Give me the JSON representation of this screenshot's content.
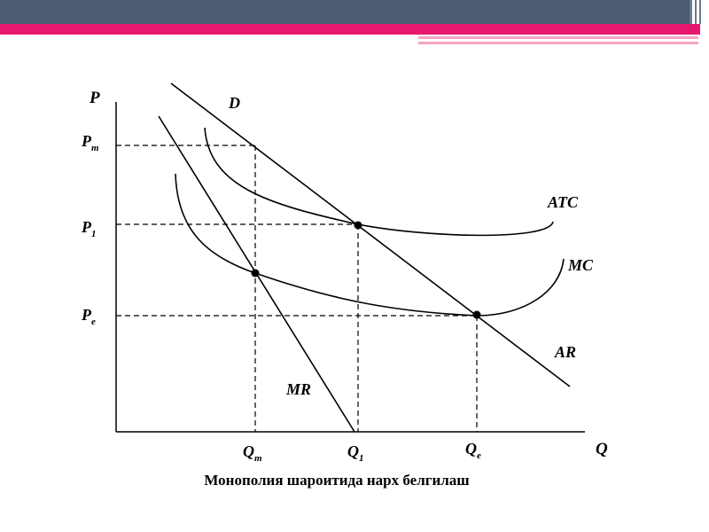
{
  "header": {
    "bar_color": "#4c5a72",
    "accent_color": "#e8176e",
    "light_accent_color": "#f6a3c4"
  },
  "diagram": {
    "axis_y_label": "P",
    "axis_x_label": "Q",
    "price_ticks": [
      {
        "main": "P",
        "sub": "m"
      },
      {
        "main": "P",
        "sub": "1"
      },
      {
        "main": "P",
        "sub": "e"
      }
    ],
    "quantity_ticks": [
      {
        "main": "Q",
        "sub": "m"
      },
      {
        "main": "Q",
        "sub": "1"
      },
      {
        "main": "Q",
        "sub": "e"
      }
    ],
    "curves": {
      "demand_top": "D",
      "demand_bottom": "AR",
      "marginal_revenue": "MR",
      "average_total_cost": "ATC",
      "marginal_cost": "MC"
    }
  },
  "caption": "Монополия шароитида  нарх белгилаш"
}
